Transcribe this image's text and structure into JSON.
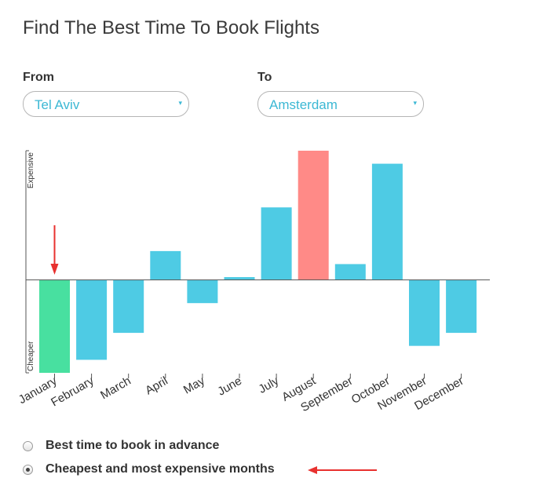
{
  "page": {
    "title": "Find The Best Time To Book Flights"
  },
  "form": {
    "from": {
      "label": "From",
      "value": "Tel Aviv"
    },
    "to": {
      "label": "To",
      "value": "Amsterdam"
    },
    "dropdown_glyph": "▾"
  },
  "chart_data": {
    "type": "bar",
    "title": "",
    "xlabel": "",
    "ylabel": "",
    "y_axis_top_label": "Expensive",
    "y_axis_bottom_label": "Cheaper",
    "categories": [
      "January",
      "February",
      "March",
      "April",
      "May",
      "June",
      "July",
      "August",
      "September",
      "October",
      "November",
      "December"
    ],
    "values": [
      -100,
      -86,
      -57,
      31,
      -25,
      3,
      78,
      139,
      17,
      125,
      -71,
      -57
    ],
    "ylim": [
      -100,
      139
    ],
    "baseline": 0,
    "grid": false,
    "legend": "none",
    "highlight": {
      "cheapest": "January",
      "most_expensive": "August"
    },
    "colors": {
      "default_bar": "#4ecbe4",
      "cheapest_bar": "#48e0a0",
      "expensive_bar": "#ff8a87",
      "axis": "#555555"
    }
  },
  "options": [
    {
      "label": "Best time to book in advance",
      "checked": false
    },
    {
      "label": "Cheapest and most expensive months",
      "checked": true
    }
  ],
  "annotations": {
    "arrow_color": "#e8312f",
    "month_marker_target": "January"
  }
}
